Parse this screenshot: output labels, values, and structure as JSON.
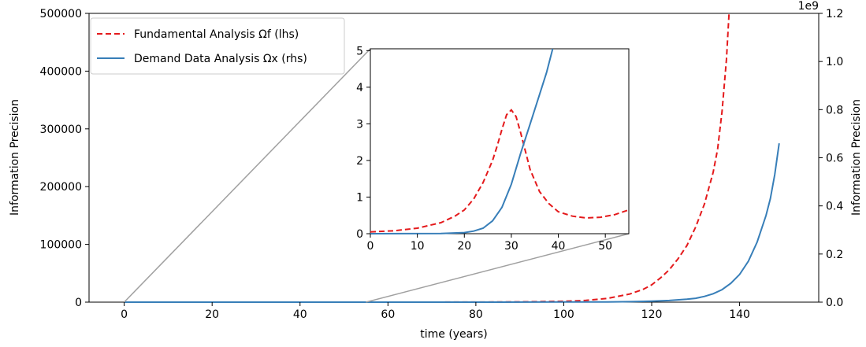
{
  "chart_data": {
    "type": "line",
    "xlabel": "time (years)",
    "ylabel_left": "Information Precision",
    "ylabel_right": "Information Precision",
    "right_axis_offset_text": "1e9",
    "xlim": [
      -8,
      158
    ],
    "ylim_left": [
      0,
      500000
    ],
    "ylim_right": [
      0,
      1.2
    ],
    "x_ticks": [
      0,
      20,
      40,
      60,
      80,
      100,
      120,
      140
    ],
    "y_ticks_left": [
      0,
      100000,
      200000,
      300000,
      400000,
      500000
    ],
    "y_ticks_right": [
      0.0,
      0.2,
      0.4,
      0.6,
      0.8,
      1.0,
      1.2
    ],
    "legend_placement": "upper-left",
    "series": [
      {
        "name": "Fundamental Analysis Ωf (lhs)",
        "axis": "left",
        "color": "#e41a1c",
        "style": "dashed",
        "points": [
          [
            0,
            0
          ],
          [
            60,
            0
          ],
          [
            80,
            200
          ],
          [
            90,
            600
          ],
          [
            100,
            1500
          ],
          [
            105,
            3000
          ],
          [
            110,
            6500
          ],
          [
            115,
            14000
          ],
          [
            118,
            22000
          ],
          [
            120,
            30000
          ],
          [
            122,
            42000
          ],
          [
            124,
            56000
          ],
          [
            126,
            75000
          ],
          [
            128,
            98000
          ],
          [
            130,
            130000
          ],
          [
            132,
            170000
          ],
          [
            134,
            225000
          ],
          [
            135,
            265000
          ],
          [
            136,
            330000
          ],
          [
            137,
            420000
          ],
          [
            137.6,
            500000
          ]
        ]
      },
      {
        "name": "Demand Data Analysis Ωx (rhs)",
        "axis": "right",
        "color": "#377eb8",
        "style": "solid",
        "points": [
          [
            0,
            0
          ],
          [
            80,
            0
          ],
          [
            100,
            0.0005
          ],
          [
            110,
            0.001
          ],
          [
            115,
            0.002
          ],
          [
            120,
            0.004
          ],
          [
            124,
            0.007
          ],
          [
            128,
            0.012
          ],
          [
            130,
            0.016
          ],
          [
            132,
            0.024
          ],
          [
            134,
            0.035
          ],
          [
            136,
            0.052
          ],
          [
            138,
            0.078
          ],
          [
            140,
            0.115
          ],
          [
            142,
            0.17
          ],
          [
            144,
            0.25
          ],
          [
            146,
            0.36
          ],
          [
            147,
            0.43
          ],
          [
            148,
            0.53
          ],
          [
            149,
            0.66
          ]
        ]
      }
    ],
    "inset": {
      "xlim": [
        0,
        55
      ],
      "ylim": [
        0,
        5.05
      ],
      "x_ticks": [
        0,
        10,
        20,
        30,
        40,
        50
      ],
      "y_ticks": [
        0,
        1,
        2,
        3,
        4,
        5
      ],
      "zoom_source_x_range": [
        0,
        55
      ],
      "series": [
        {
          "name": "Fundamental Analysis Ωf (lhs)",
          "color": "#e41a1c",
          "style": "dashed",
          "points": [
            [
              0,
              0.05
            ],
            [
              5,
              0.08
            ],
            [
              10,
              0.15
            ],
            [
              15,
              0.3
            ],
            [
              18,
              0.48
            ],
            [
              20,
              0.65
            ],
            [
              22,
              0.95
            ],
            [
              24,
              1.4
            ],
            [
              26,
              2.0
            ],
            [
              27,
              2.4
            ],
            [
              28,
              2.85
            ],
            [
              29,
              3.25
            ],
            [
              30,
              3.38
            ],
            [
              31,
              3.2
            ],
            [
              32,
              2.75
            ],
            [
              33,
              2.25
            ],
            [
              34,
              1.75
            ],
            [
              36,
              1.15
            ],
            [
              38,
              0.82
            ],
            [
              40,
              0.6
            ],
            [
              43,
              0.48
            ],
            [
              46,
              0.43
            ],
            [
              49,
              0.45
            ],
            [
              52,
              0.52
            ],
            [
              55,
              0.65
            ]
          ]
        },
        {
          "name": "Demand Data Analysis Ωx (rhs)",
          "color": "#377eb8",
          "style": "solid",
          "points": [
            [
              0,
              0
            ],
            [
              15,
              0.005
            ],
            [
              20,
              0.03
            ],
            [
              22,
              0.07
            ],
            [
              24,
              0.15
            ],
            [
              26,
              0.35
            ],
            [
              28,
              0.72
            ],
            [
              30,
              1.35
            ],
            [
              32,
              2.2
            ],
            [
              34,
              3.0
            ],
            [
              36,
              3.8
            ],
            [
              37.5,
              4.4
            ],
            [
              38.8,
              5.05
            ]
          ]
        }
      ]
    }
  }
}
